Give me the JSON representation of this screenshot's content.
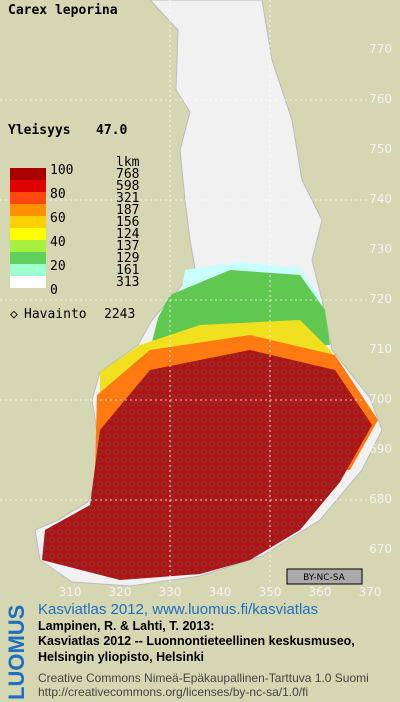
{
  "title": "Carex leporina",
  "frequency": {
    "label": "Yleisyys",
    "value": "47.0"
  },
  "legend": {
    "unit": "lkm",
    "scale": [
      100,
      80,
      60,
      40,
      20,
      0
    ],
    "counts": [
      768,
      598,
      321,
      187,
      156,
      124,
      137,
      129,
      161,
      313
    ]
  },
  "observations": {
    "label": "Havainto",
    "value": 2243
  },
  "grid": {
    "y_labels": [
      770,
      760,
      750,
      740,
      730,
      720,
      710,
      700,
      690,
      680,
      670
    ],
    "x_labels": [
      310,
      320,
      330,
      340,
      350,
      360,
      370
    ]
  },
  "badge": "BY-NC-SA",
  "footer": {
    "brand": "LUOMUS",
    "link": "Kasviatlas 2012, www.luomus.fi/kasviatlas",
    "citation": [
      "Lampinen, R. & Lahti, T. 2013:",
      "Kasviatlas 2012 -- Luonnontieteellinen keskusmuseo,",
      "Helsingin yliopisto, Helsinki"
    ],
    "license": [
      "Creative Commons Nimeä-Epäkaupallinen-Tarttuva 1.0 Suomi",
      "http://creativecommons.org/licenses/by-nc-sa/1.0/fi"
    ]
  }
}
